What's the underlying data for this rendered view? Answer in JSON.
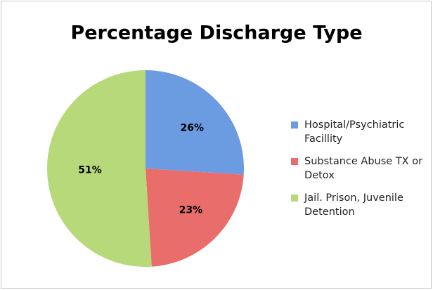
{
  "chart_data": {
    "type": "pie",
    "title": "Percentage Discharge Type",
    "categories": [
      "Hospital/Psychiatric Facillity",
      "Substance Abuse TX or Detox",
      "Jail. Prison, Juvenile Detention"
    ],
    "values": [
      26,
      23,
      51
    ],
    "value_labels": [
      "26%",
      "23%",
      "51%"
    ],
    "colors": [
      "#6b9be0",
      "#e86d6b",
      "#b7d97a"
    ],
    "legend": "right"
  }
}
